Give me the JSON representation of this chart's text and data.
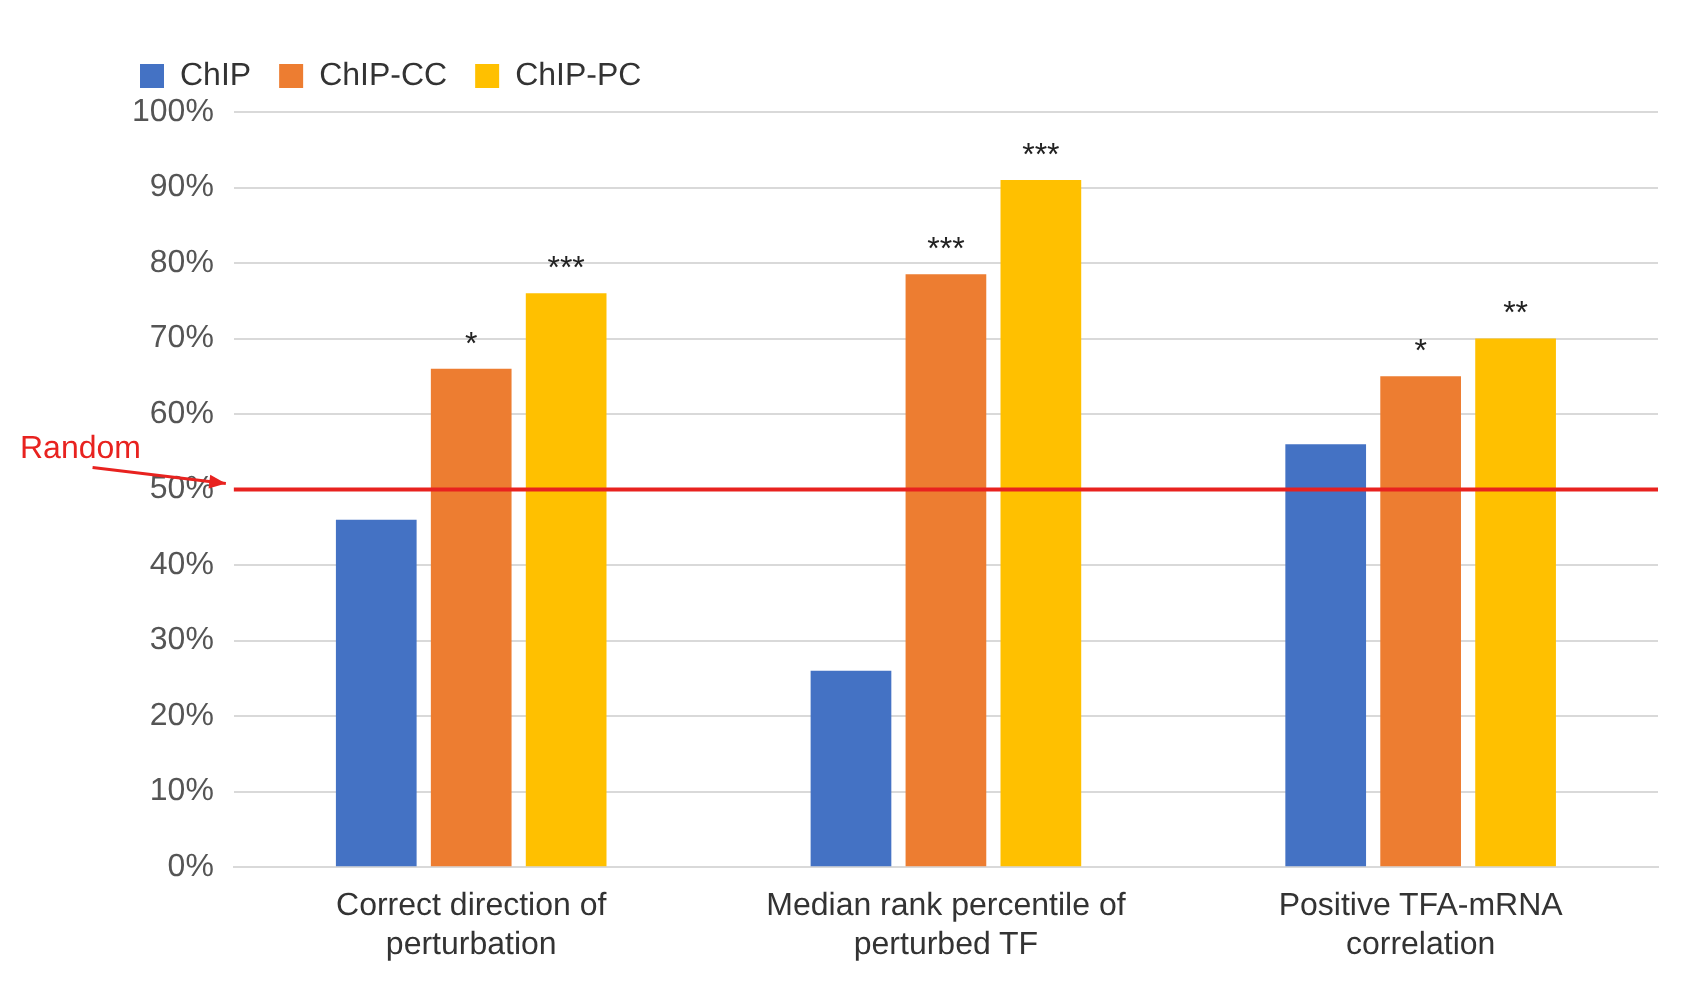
{
  "chart_data": {
    "type": "bar",
    "categories": [
      "Correct direction of perturbation",
      "Median rank percentile of perturbed TF",
      "Positive TFA-mRNA correlation"
    ],
    "series": [
      {
        "name": "ChIP",
        "color": "#4472c4",
        "values": [
          46,
          26,
          56
        ]
      },
      {
        "name": "ChIP-CC",
        "color": "#ed7d31",
        "values": [
          66,
          78.5,
          65
        ],
        "value_labels": [
          "*",
          "***",
          "*"
        ]
      },
      {
        "name": "ChIP-PC",
        "color": "#ffc000",
        "values": [
          76,
          91,
          70
        ],
        "value_labels": [
          "***",
          "***",
          "**"
        ]
      }
    ],
    "ylim": [
      0,
      100
    ],
    "yticks": [
      {
        "value": 0,
        "label": "0%"
      },
      {
        "value": 10,
        "label": "10%"
      },
      {
        "value": 20,
        "label": "20%"
      },
      {
        "value": 30,
        "label": "30%"
      },
      {
        "value": 40,
        "label": "40%"
      },
      {
        "value": 50,
        "label": "50%"
      },
      {
        "value": 60,
        "label": "60%"
      },
      {
        "value": 70,
        "label": "70%"
      },
      {
        "value": 80,
        "label": "80%"
      },
      {
        "value": 90,
        "label": "90%"
      },
      {
        "value": 100,
        "label": "100%"
      }
    ],
    "grid": "y",
    "legend": "top left",
    "ref_lines": [
      {
        "axis": "y",
        "value": 50,
        "label": "Random",
        "color": "#e8221f"
      }
    ]
  }
}
